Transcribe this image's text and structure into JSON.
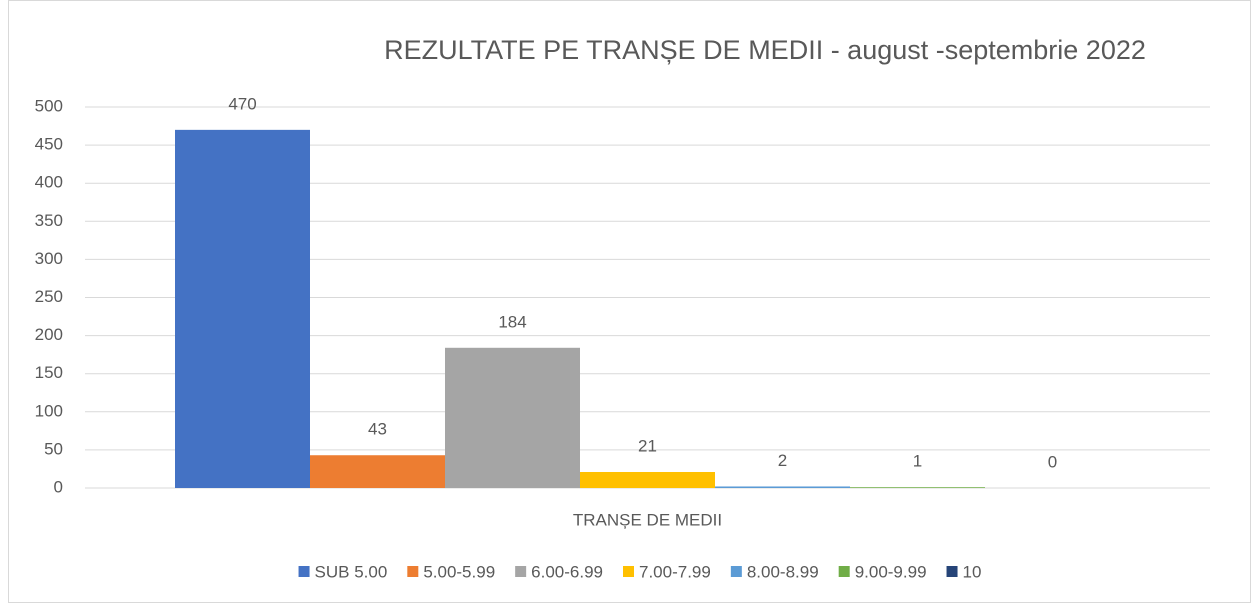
{
  "chart_data": {
    "type": "bar",
    "title": "REZULTATE PE TRANȘE DE MEDII - august -septembrie 2022",
    "categories": [
      "TRANȘE DE MEDII"
    ],
    "series": [
      {
        "name": "SUB 5.00",
        "color": "#4472c4",
        "values": [
          470
        ]
      },
      {
        "name": "5.00-5.99",
        "color": "#ed7d31",
        "values": [
          43
        ]
      },
      {
        "name": "6.00-6.99",
        "color": "#a5a5a5",
        "values": [
          184
        ]
      },
      {
        "name": "7.00-7.99",
        "color": "#ffc000",
        "values": [
          21
        ]
      },
      {
        "name": "8.00-8.99",
        "color": "#5b9bd5",
        "values": [
          2
        ]
      },
      {
        "name": "9.00-9.99",
        "color": "#70ad47",
        "values": [
          1
        ]
      },
      {
        "name": "10",
        "color": "#264478",
        "values": [
          0
        ]
      }
    ],
    "ylim": [
      0,
      500
    ],
    "yticks": [
      0,
      50,
      100,
      150,
      200,
      250,
      300,
      350,
      400,
      450,
      500
    ],
    "grid": true,
    "legend": "bottom"
  }
}
